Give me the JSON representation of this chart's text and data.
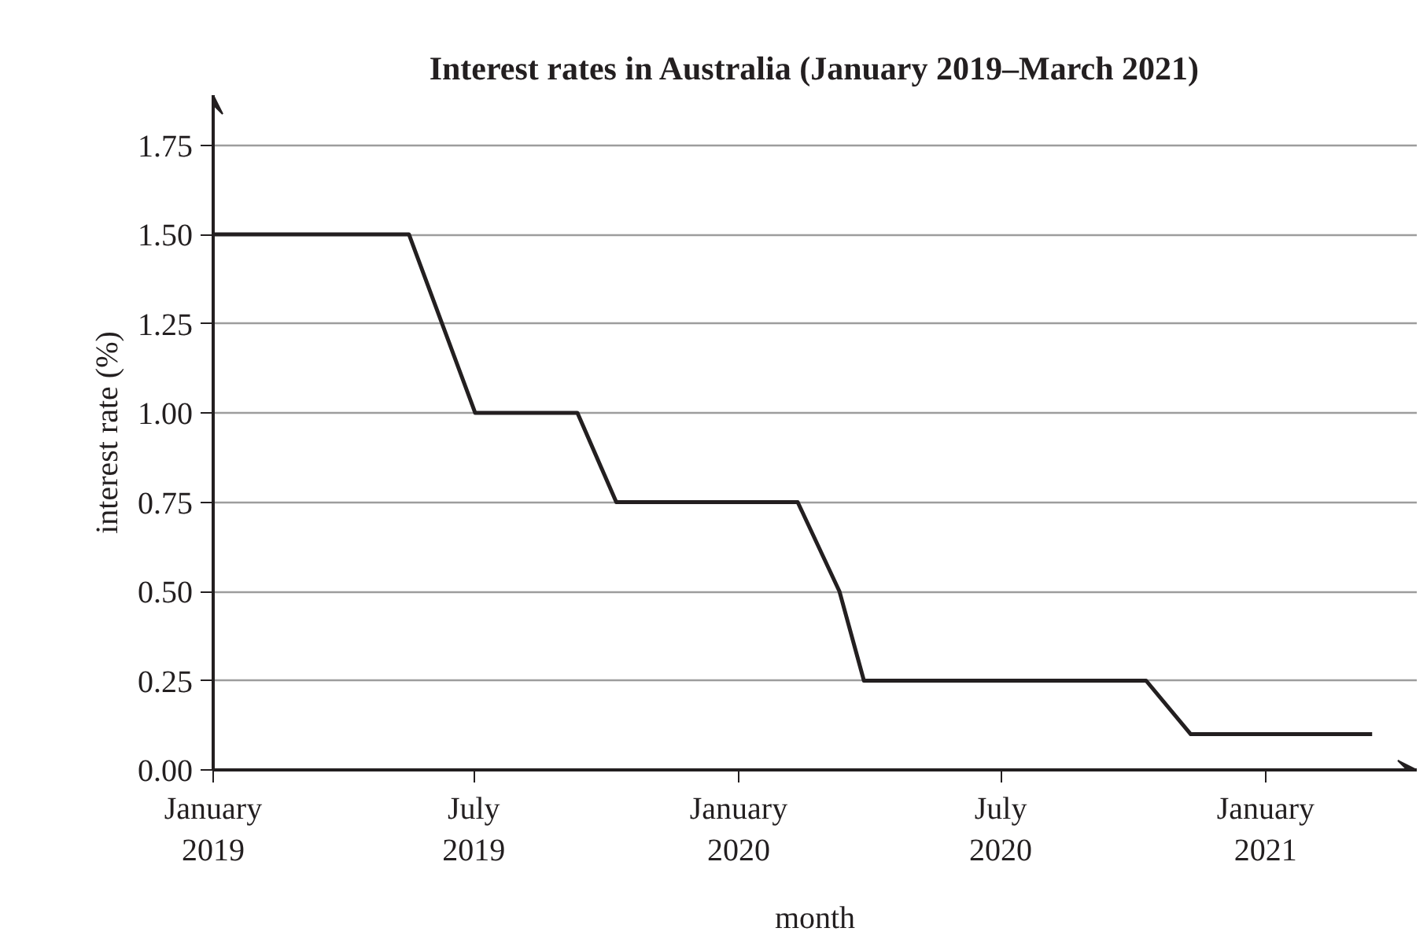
{
  "chart_data": {
    "type": "line",
    "title": "Interest rates in Australia (January 2019–March 2021)",
    "xlabel": "month",
    "ylabel": "interest rate (%)",
    "x": [
      "2019-01-01",
      "2019-05-17",
      "2019-07-02",
      "2019-09-11",
      "2019-10-08",
      "2020-02-11",
      "2020-03-11",
      "2020-03-28",
      "2020-10-10",
      "2020-11-10",
      "2021-03-16"
    ],
    "series": [
      {
        "color": "#231f20",
        "values": [
          1.5,
          1.5,
          1.0,
          1.0,
          0.75,
          0.75,
          0.5,
          0.25,
          0.25,
          0.1,
          0.1
        ]
      }
    ],
    "xlim": [
      "2019-01-01",
      "2021-04-16"
    ],
    "xticks": [
      {
        "value": "2019-01-01",
        "label": "January\n2019"
      },
      {
        "value": "2019-07-01",
        "label": "July\n2019"
      },
      {
        "value": "2020-01-01",
        "label": "January\n2020"
      },
      {
        "value": "2020-07-01",
        "label": "July\n2020"
      },
      {
        "value": "2021-01-01",
        "label": "January\n2021"
      }
    ],
    "ylim": [
      0,
      1.89
    ],
    "yticks": [
      {
        "value": 0,
        "label": "0.00"
      },
      {
        "value": 0.25,
        "label": "0.25"
      },
      {
        "value": 0.5,
        "label": "0.50"
      },
      {
        "value": 0.75,
        "label": "0.75"
      },
      {
        "value": 1.0,
        "label": "1.00"
      },
      {
        "value": 1.25,
        "label": "1.25"
      },
      {
        "value": 1.5,
        "label": "1.50"
      },
      {
        "value": 1.75,
        "label": "1.75"
      }
    ],
    "grid": "y",
    "marker": "none",
    "line_style": "solid"
  }
}
